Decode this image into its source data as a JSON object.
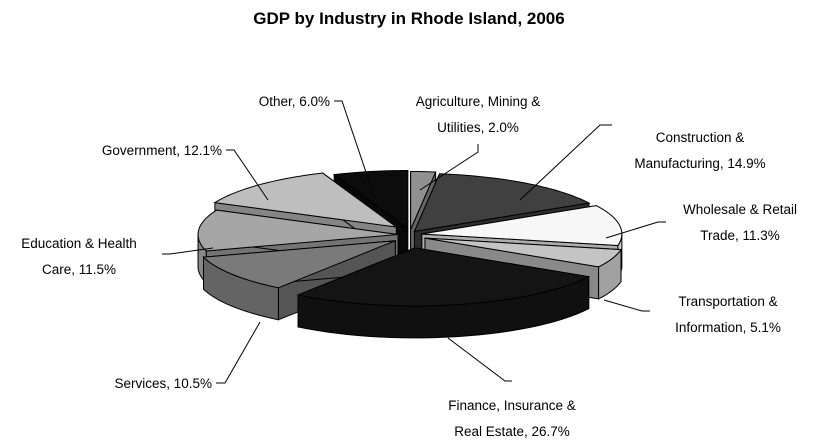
{
  "chart_data": {
    "type": "pie",
    "style": "exploded 3d",
    "title": "GDP by Industry in Rhode Island, 2006",
    "unit": "%",
    "slices": [
      {
        "name": "Agriculture, Mining & Utilities",
        "value": 2.0,
        "label": "2.0%",
        "label_lines": [
          "Agriculture, Mining &",
          "Utilities, 2.0%"
        ],
        "color": "#909090"
      },
      {
        "name": "Construction & Manufacturing",
        "value": 14.9,
        "label": "14.9%",
        "label_lines": [
          "Construction &",
          "Manufacturing, 14.9%"
        ],
        "color": "#404040"
      },
      {
        "name": "Wholesale & Retail Trade",
        "value": 11.3,
        "label": "11.3%",
        "label_lines": [
          "Wholesale & Retail",
          "Trade, 11.3%"
        ],
        "color": "#f7f7f7"
      },
      {
        "name": "Transportation & Information",
        "value": 5.1,
        "label": "5.1%",
        "label_lines": [
          "Transportation &",
          "Information, 5.1%"
        ],
        "color": "#c4c4c4"
      },
      {
        "name": "Finance, Insurance & Real Estate",
        "value": 26.7,
        "label": "26.7%",
        "label_lines": [
          "Finance, Insurance &",
          "Real Estate, 26.7%"
        ],
        "color": "#141414"
      },
      {
        "name": "Services",
        "value": 10.5,
        "label": "10.5%",
        "label_lines": [
          "Services, 10.5%"
        ],
        "color": "#7a7a7a"
      },
      {
        "name": "Education & Health Care",
        "value": 11.5,
        "label": "11.5%",
        "label_lines": [
          "Education & Health",
          "Care, 11.5%"
        ],
        "color": "#a6a6a6"
      },
      {
        "name": "Government",
        "value": 12.1,
        "label": "12.1%",
        "label_lines": [
          "Government, 12.1%"
        ],
        "color": "#bebebe"
      },
      {
        "name": "Other",
        "value": 6.0,
        "label": "6.0%",
        "label_lines": [
          "Other, 6.0%"
        ],
        "color": "#0c0c0c"
      }
    ]
  }
}
